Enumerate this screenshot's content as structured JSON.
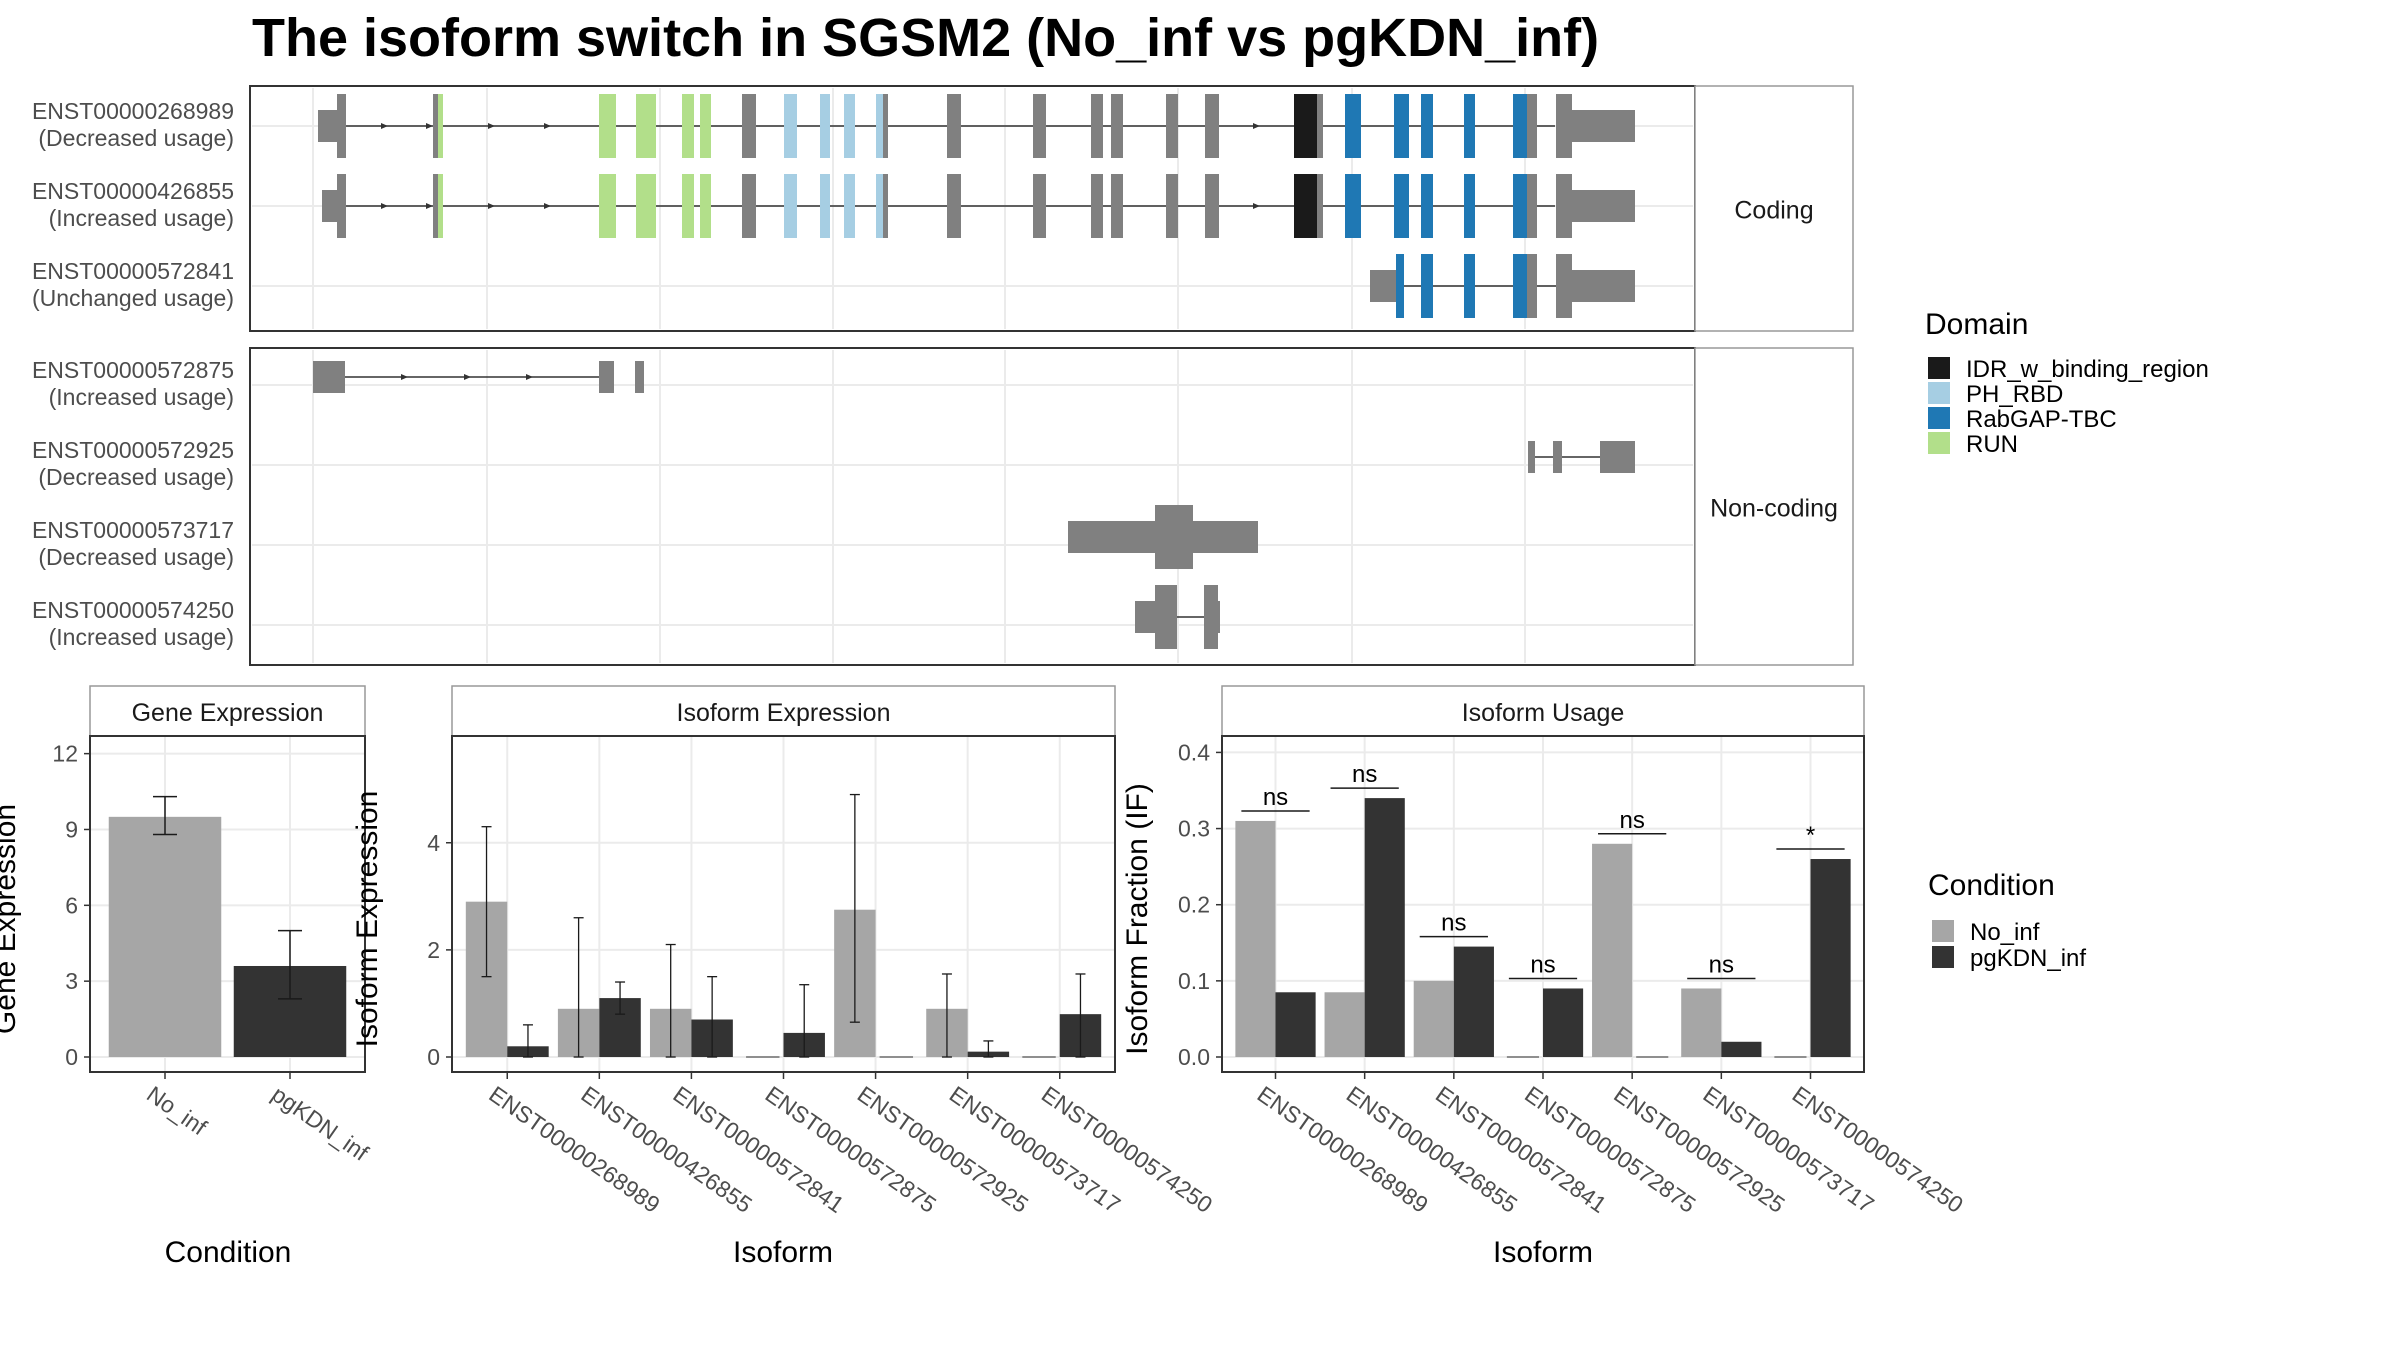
{
  "title": "The isoform switch in SGSM2 (No_inf vs pgKDN_inf)",
  "colors": {
    "no_inf": "#a6a6a6",
    "pgkdn_inf": "#333333",
    "exon": "#808080",
    "domains": {
      "IDR_w_binding_region": "#1a1a1a",
      "PH_RBD": "#a6cee3",
      "RabGAP-TBC": "#1f78b4",
      "RUN": "#b2df8a"
    }
  },
  "domain_legend": {
    "title": "Domain",
    "items": [
      "IDR_w_binding_region",
      "PH_RBD",
      "RabGAP-TBC",
      "RUN"
    ]
  },
  "condition_legend": {
    "title": "Condition",
    "items": [
      "No_inf",
      "pgKDN_inf"
    ]
  },
  "structure_panels": [
    {
      "strip": "Coding",
      "transcripts": [
        {
          "id": "ENST00000268989",
          "usage": "(Decreased usage)"
        },
        {
          "id": "ENST00000426855",
          "usage": "(Increased usage)"
        },
        {
          "id": "ENST00000572841",
          "usage": "(Unchanged usage)"
        }
      ]
    },
    {
      "strip": "Non-coding",
      "transcripts": [
        {
          "id": "ENST00000572875",
          "usage": "(Increased usage)"
        },
        {
          "id": "ENST00000572925",
          "usage": "(Decreased usage)"
        },
        {
          "id": "ENST00000573717",
          "usage": "(Decreased usage)"
        },
        {
          "id": "ENST00000574250",
          "usage": "(Increased usage)"
        }
      ]
    }
  ],
  "chart_data": [
    {
      "type": "bar",
      "panel": "Gene Expression",
      "xlabel": "Condition",
      "ylabel": "Gene Expression",
      "categories": [
        "No_inf",
        "pgKDN_inf"
      ],
      "values": [
        9.5,
        3.6
      ],
      "error_low": [
        8.8,
        2.3
      ],
      "error_high": [
        10.3,
        5.0
      ],
      "ylim": [
        0,
        12.5
      ],
      "yticks": [
        0,
        3,
        6,
        9,
        12
      ]
    },
    {
      "type": "bar",
      "panel": "Isoform Expression",
      "xlabel": "Isoform",
      "ylabel": "Isoform Expression",
      "categories": [
        "ENST00000268989",
        "ENST00000426855",
        "ENST00000572841",
        "ENST00000572875",
        "ENST00000572925",
        "ENST00000573717",
        "ENST00000574250"
      ],
      "series": [
        {
          "name": "No_inf",
          "values": [
            2.9,
            0.9,
            0.9,
            0.0,
            2.75,
            0.9,
            0.0
          ],
          "error_low": [
            1.5,
            0.0,
            0.0,
            0.0,
            0.65,
            0.0,
            0.0
          ],
          "error_high": [
            4.3,
            2.6,
            2.1,
            0.0,
            4.9,
            1.55,
            0.0
          ]
        },
        {
          "name": "pgKDN_inf",
          "values": [
            0.2,
            1.1,
            0.7,
            0.45,
            0.0,
            0.1,
            0.8
          ],
          "error_low": [
            0.0,
            0.8,
            0.0,
            0.0,
            0.0,
            0.0,
            0.0
          ],
          "error_high": [
            0.6,
            1.4,
            1.5,
            1.35,
            0.0,
            0.3,
            1.55
          ]
        }
      ],
      "ylim": [
        0,
        5.9
      ],
      "yticks": [
        0,
        2,
        4
      ]
    },
    {
      "type": "bar",
      "panel": "Isoform Usage",
      "xlabel": "Isoform",
      "ylabel": "Isoform Fraction (IF)",
      "categories": [
        "ENST00000268989",
        "ENST00000426855",
        "ENST00000572841",
        "ENST00000572875",
        "ENST00000572925",
        "ENST00000573717",
        "ENST00000574250"
      ],
      "series": [
        {
          "name": "No_inf",
          "values": [
            0.31,
            0.085,
            0.1,
            0.0,
            0.28,
            0.09,
            0.0
          ]
        },
        {
          "name": "pgKDN_inf",
          "values": [
            0.085,
            0.34,
            0.145,
            0.09,
            0.0,
            0.02,
            0.26
          ]
        }
      ],
      "significance": [
        "ns",
        "ns",
        "ns",
        "ns",
        "ns",
        "ns",
        "*"
      ],
      "ylim": [
        0,
        0.415
      ],
      "yticks": [
        0.0,
        0.1,
        0.2,
        0.3,
        0.4
      ]
    }
  ]
}
